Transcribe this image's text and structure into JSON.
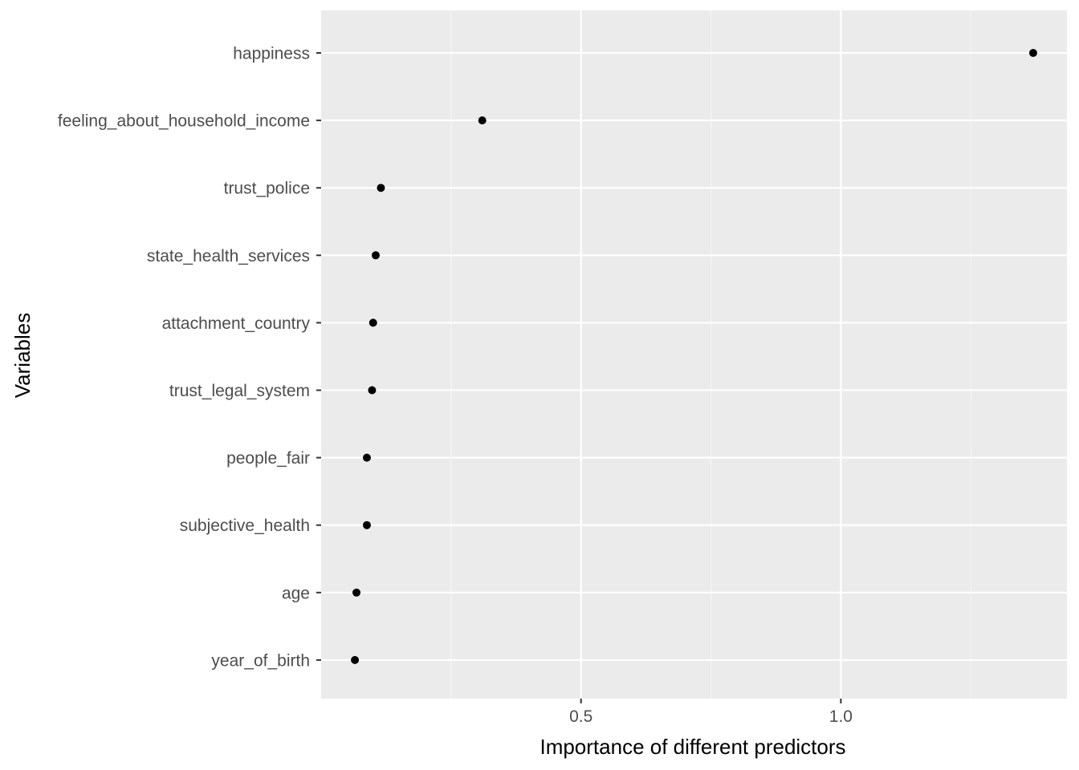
{
  "chart_data": {
    "type": "scatter",
    "title": "",
    "xlabel": "Importance of different predictors",
    "ylabel": "Variables",
    "categories": [
      "happiness",
      "feeling_about_household_income",
      "trust_police",
      "state_health_services",
      "attachment_country",
      "trust_legal_system",
      "people_fair",
      "subjective_health",
      "age",
      "year_of_birth"
    ],
    "values": [
      1.37,
      0.31,
      0.115,
      0.105,
      0.1,
      0.098,
      0.088,
      0.088,
      0.068,
      0.065
    ],
    "xlim": [
      0.0,
      1.435
    ],
    "x_ticks": [
      0.5,
      1.0
    ],
    "x_tick_labels": [
      "0.5",
      "1.0"
    ],
    "grid": true,
    "legend": "none",
    "colors": {
      "panel_background": "#ebebeb",
      "grid_major": "#ffffff",
      "grid_minor": "#f5f5f5",
      "point": "#000000",
      "tick_label": "#4d4d4d",
      "axis_title": "#000000"
    }
  }
}
